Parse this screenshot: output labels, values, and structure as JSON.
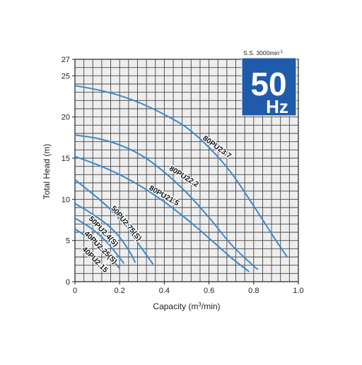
{
  "chart_data": {
    "type": "line",
    "speed_note": "S.S. 3000min",
    "speed_note_sup": "-1",
    "badge_line1": "50",
    "badge_line2": "Hz",
    "xlabel_main": "Capacity (m",
    "xlabel_sup": "3",
    "xlabel_tail": "/min)",
    "ylabel": "Total Head (m)",
    "xlim": [
      0,
      1.0
    ],
    "ylim": [
      0,
      27
    ],
    "x_ticks": [
      0,
      0.2,
      0.4,
      0.6,
      0.8,
      1.0
    ],
    "x_tick_labels": [
      "0",
      "0.2",
      "0.4",
      "0.6",
      "0.8",
      "1.0"
    ],
    "y_ticks": [
      0,
      5,
      10,
      15,
      20,
      25,
      27
    ],
    "y_tick_labels": [
      "0",
      "5",
      "10",
      "15",
      "20",
      "25",
      "27"
    ],
    "grid": true,
    "grid_step": {
      "x": 0.04,
      "y": 1
    },
    "colors": {
      "curve": "#3f88c9",
      "grid": "#444444",
      "plot_bg": "#eeeeee",
      "badge_bg": "#1f5ba8",
      "badge_text": "#ffffff",
      "text": "#222222"
    },
    "series": [
      {
        "name": "80PU23.7",
        "x": [
          0,
          0.1,
          0.2,
          0.3,
          0.4,
          0.5,
          0.6,
          0.7,
          0.8,
          0.9,
          0.95
        ],
        "y": [
          23.8,
          23.3,
          22.6,
          21.6,
          20.3,
          18.7,
          16.3,
          13.2,
          9.2,
          5.0,
          3.0
        ]
      },
      {
        "name": "80PU22.2",
        "x": [
          0,
          0.1,
          0.2,
          0.3,
          0.4,
          0.5,
          0.6,
          0.7,
          0.8,
          0.82
        ],
        "y": [
          17.8,
          17.4,
          16.6,
          15.3,
          13.3,
          10.8,
          7.8,
          4.5,
          1.9,
          1.5
        ]
      },
      {
        "name": "80PU21.5",
        "x": [
          0,
          0.1,
          0.2,
          0.3,
          0.4,
          0.5,
          0.6,
          0.7,
          0.78
        ],
        "y": [
          15.2,
          14.2,
          13.0,
          11.5,
          9.7,
          7.6,
          5.3,
          2.9,
          1.2
        ]
      },
      {
        "name": "50PU2.75(S)",
        "x": [
          0,
          0.05,
          0.1,
          0.15,
          0.2,
          0.25,
          0.3,
          0.35
        ],
        "y": [
          12.4,
          11.3,
          10.2,
          9.0,
          7.6,
          5.9,
          4.0,
          2.1
        ]
      },
      {
        "name": "50PU2.4(S)",
        "x": [
          0,
          0.05,
          0.1,
          0.15,
          0.2,
          0.25,
          0.27
        ],
        "y": [
          9.5,
          8.7,
          7.8,
          6.8,
          5.4,
          3.4,
          2.3
        ]
      },
      {
        "name": "40PU2.25(S)",
        "x": [
          0,
          0.05,
          0.1,
          0.15,
          0.2,
          0.22
        ],
        "y": [
          7.7,
          6.9,
          5.9,
          4.6,
          2.9,
          2.2
        ]
      },
      {
        "name": "40PU2.15",
        "x": [
          0,
          0.05,
          0.1,
          0.15,
          0.2
        ],
        "y": [
          6.4,
          5.5,
          4.4,
          3.2,
          1.6
        ]
      }
    ],
    "curve_labels": [
      {
        "text": "80PU23.7",
        "x": 0.57,
        "y": 17.3,
        "angle": 36
      },
      {
        "text": "80PU22.2",
        "x": 0.42,
        "y": 13.6,
        "angle": 32
      },
      {
        "text": "80PU21.5",
        "x": 0.33,
        "y": 11.2,
        "angle": 30
      },
      {
        "text": "50PU2.75(S)",
        "x": 0.16,
        "y": 8.9,
        "angle": 50
      },
      {
        "text": "50PU2.4(S)",
        "x": 0.06,
        "y": 7.6,
        "angle": 46
      },
      {
        "text": "40PU2.25(S)",
        "x": 0.04,
        "y": 5.8,
        "angle": 45
      },
      {
        "text": "40PU2.15",
        "x": 0.03,
        "y": 3.9,
        "angle": 45
      }
    ]
  }
}
